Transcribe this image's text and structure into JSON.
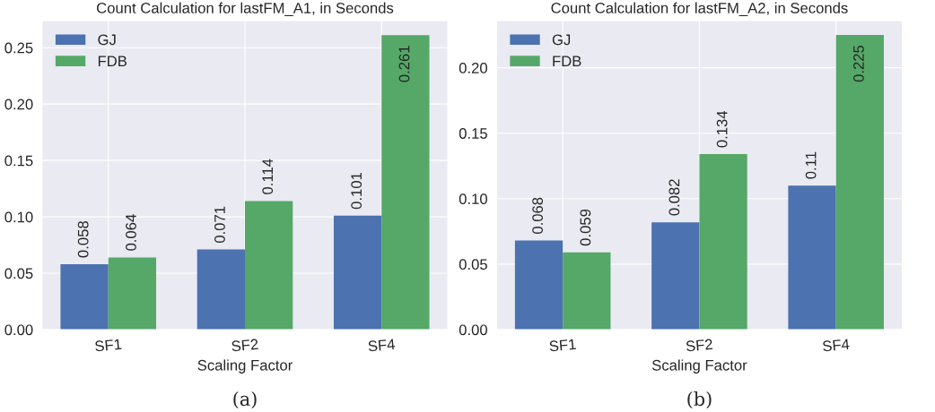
{
  "chart_data": [
    {
      "type": "bar",
      "title": "Count Calculation for lastFM_A1, in Seconds",
      "xlabel": "Scaling Factor",
      "categories": [
        "SF1",
        "SF2",
        "SF4"
      ],
      "series": [
        {
          "name": "GJ",
          "color": "#4c72b0",
          "values": [
            0.058,
            0.071,
            0.101
          ]
        },
        {
          "name": "FDB",
          "color": "#55a868",
          "values": [
            0.064,
            0.114,
            0.261
          ]
        }
      ],
      "ylim": [
        0,
        0.274
      ],
      "yticks": [
        {
          "value": 0,
          "label": "0.00"
        },
        {
          "value": 0.05,
          "label": "0.05"
        },
        {
          "value": 0.1,
          "label": "0.10"
        },
        {
          "value": 0.15,
          "label": "0.15"
        },
        {
          "value": 0.2,
          "label": "0.20"
        },
        {
          "value": 0.25,
          "label": "0.25"
        }
      ],
      "grid": true,
      "legend": "top left",
      "data_labels": true,
      "annotations": [
        "(a)"
      ]
    },
    {
      "type": "bar",
      "title": "Count Calculation for lastFM_A2, in Seconds",
      "xlabel": "Scaling Factor",
      "categories": [
        "SF1",
        "SF2",
        "SF4"
      ],
      "series": [
        {
          "name": "GJ",
          "color": "#4c72b0",
          "values": [
            0.068,
            0.082,
            0.11
          ]
        },
        {
          "name": "FDB",
          "color": "#55a868",
          "values": [
            0.059,
            0.134,
            0.225
          ]
        }
      ],
      "ylim": [
        0,
        0.236
      ],
      "yticks": [
        {
          "value": 0,
          "label": "0.00"
        },
        {
          "value": 0.05,
          "label": "0.05"
        },
        {
          "value": 0.1,
          "label": "0.10"
        },
        {
          "value": 0.15,
          "label": "0.15"
        },
        {
          "value": 0.2,
          "label": "0.20"
        }
      ],
      "grid": true,
      "legend": "top left",
      "data_labels": true,
      "annotations": [
        "(b)"
      ]
    }
  ]
}
